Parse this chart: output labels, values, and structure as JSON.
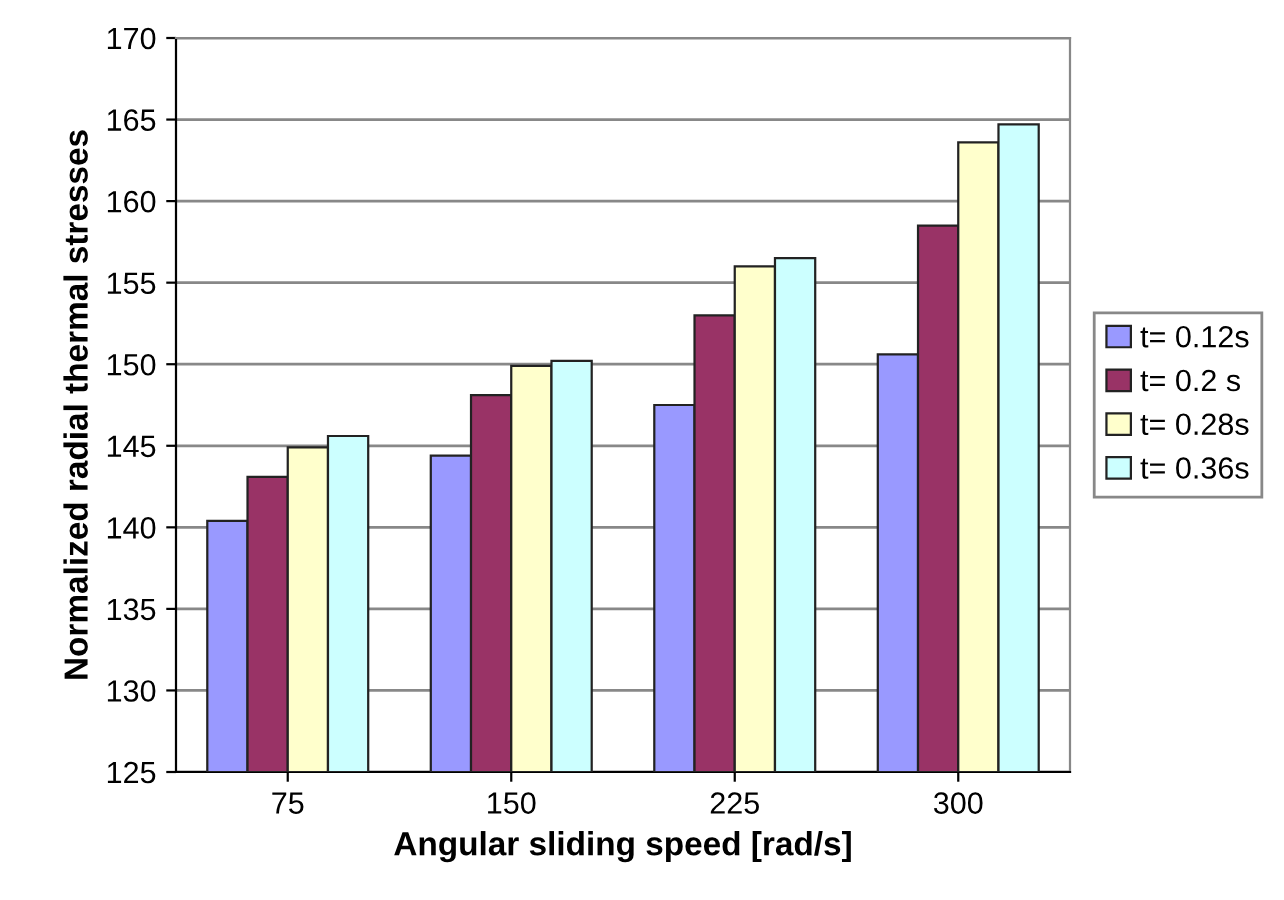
{
  "chart_data": {
    "type": "bar",
    "xlabel": "Angular sliding speed [rad/s]",
    "ylabel": "Normalized radial thermal stresses",
    "categories": [
      "75",
      "150",
      "225",
      "300"
    ],
    "series": [
      {
        "name": "t= 0.12s",
        "color": "#9999ff",
        "values": [
          140.4,
          144.4,
          147.5,
          150.6
        ]
      },
      {
        "name": "t= 0.2 s",
        "color": "#993366",
        "values": [
          143.1,
          148.1,
          153.0,
          158.5
        ]
      },
      {
        "name": "t= 0.28s",
        "color": "#ffffcc",
        "values": [
          144.9,
          149.9,
          156.0,
          163.6
        ]
      },
      {
        "name": "t= 0.36s",
        "color": "#ccffff",
        "values": [
          145.6,
          150.2,
          156.5,
          164.7
        ]
      }
    ],
    "ylim": [
      125,
      170
    ],
    "yticks": [
      125,
      130,
      135,
      140,
      145,
      150,
      155,
      160,
      165,
      170
    ],
    "grid": "y",
    "legend": "right"
  }
}
